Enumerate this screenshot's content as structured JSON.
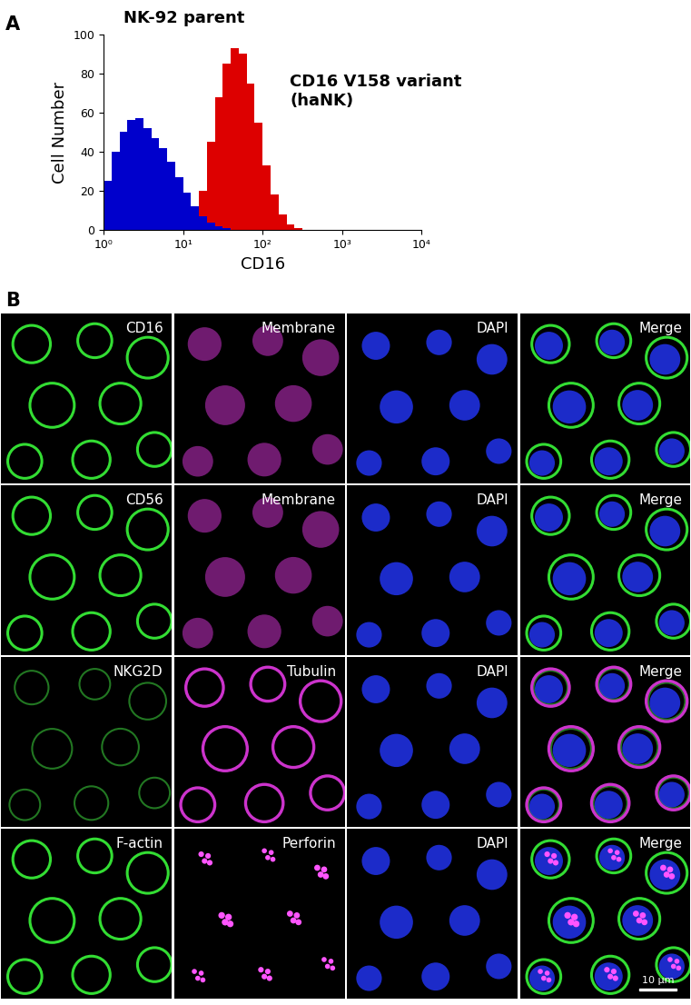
{
  "chart_data": {
    "type": "histogram",
    "xlabel": "CD16",
    "ylabel": "Cell Number",
    "log": "x",
    "bins": [
      1,
      1.26,
      1.58,
      2.0,
      2.51,
      3.16,
      3.98,
      5.01,
      6.31,
      7.94,
      10,
      12.6,
      15.8,
      20,
      25.1,
      31.6,
      39.8,
      50.1,
      63.1,
      79.4,
      100,
      126,
      158,
      200,
      251,
      316,
      398,
      501,
      631,
      794,
      1000
    ],
    "series": [
      {
        "name": "NK-92 parent",
        "color": "#0000cc",
        "values": [
          25,
          40,
          50,
          56,
          57,
          52,
          47,
          42,
          35,
          27,
          19,
          12,
          7,
          4,
          2,
          1,
          0,
          0,
          0,
          0,
          0,
          0,
          0,
          0,
          0,
          0,
          0,
          0,
          0,
          0
        ]
      },
      {
        "name": "CD16 V158 variant\n(haNK)",
        "color": "#dd0000",
        "values": [
          0,
          0,
          0,
          0,
          0,
          0,
          0,
          0,
          0,
          0,
          0,
          5,
          20,
          45,
          68,
          85,
          93,
          90,
          75,
          55,
          33,
          18,
          8,
          3,
          1,
          0,
          0,
          0,
          0,
          0
        ]
      }
    ],
    "xlim": [
      1,
      10000
    ],
    "xticks": [
      {
        "value": 1,
        "label": "10⁰"
      },
      {
        "value": 10,
        "label": "10¹"
      },
      {
        "value": 100,
        "label": "10²"
      },
      {
        "value": 1000,
        "label": "10³"
      },
      {
        "value": 10000,
        "label": "10⁴"
      }
    ],
    "ylim": [
      0,
      100
    ],
    "yticks": [
      0,
      20,
      40,
      60,
      80,
      100
    ]
  },
  "panel_labels": [
    "A",
    "B"
  ],
  "microscopy": {
    "type": "image_grid",
    "rows": [
      [
        "CD16",
        "Membrane",
        "DAPI",
        "Merge"
      ],
      [
        "CD56",
        "Membrane",
        "DAPI",
        "Merge"
      ],
      [
        "NKG2D",
        "Tubulin",
        "DAPI",
        "Merge"
      ],
      [
        "F-actin",
        "Perforin",
        "DAPI",
        "Merge"
      ]
    ],
    "scale_bar": "10 µm"
  }
}
